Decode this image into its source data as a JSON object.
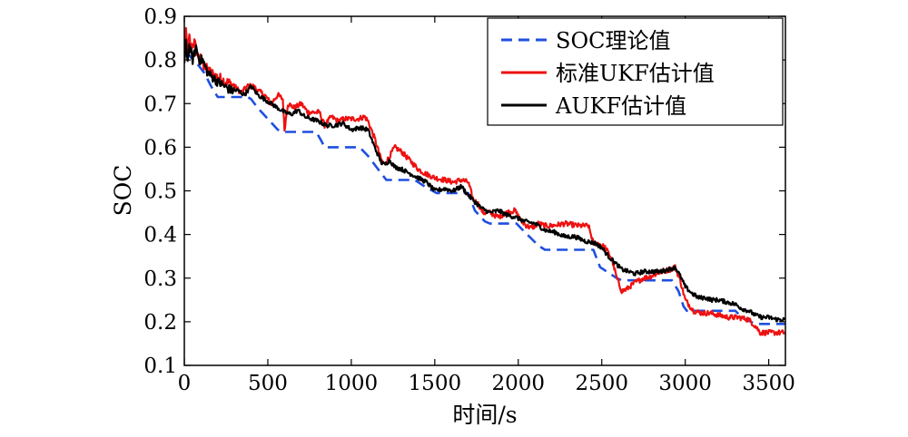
{
  "chart_data": {
    "type": "line",
    "title": "",
    "xlabel": "时间/s",
    "ylabel": "SOC",
    "xlim": [
      0,
      3600
    ],
    "ylim": [
      0.1,
      0.9
    ],
    "xticks": [
      0,
      500,
      1000,
      1500,
      2000,
      2500,
      3000,
      3500
    ],
    "xtick_labels": [
      "0",
      "500",
      "1000",
      "1500",
      "2000",
      "2500",
      "3000",
      "3500"
    ],
    "yticks": [
      0.1,
      0.2,
      0.3,
      0.4,
      0.5,
      0.6,
      0.7,
      0.8,
      0.9
    ],
    "ytick_labels": [
      "0.1",
      "0.2",
      "0.3",
      "0.4",
      "0.5",
      "0.6",
      "0.7",
      "0.8",
      "0.9"
    ],
    "grid": false,
    "legend_position": "top-right",
    "series": [
      {
        "name": "SOC理论值",
        "color": "#1f4fe0",
        "style": "dashed",
        "x": [
          0,
          30,
          80,
          120,
          160,
          200,
          380,
          400,
          440,
          560,
          590,
          790,
          820,
          840,
          1050,
          1100,
          1190,
          1210,
          1380,
          1440,
          1510,
          1700,
          1740,
          1800,
          1830,
          1990,
          2040,
          2120,
          2160,
          2450,
          2490,
          2590,
          2620,
          2920,
          2960,
          2990,
          3010,
          3300,
          3340,
          3420,
          3600
        ],
        "y": [
          0.81,
          0.81,
          0.79,
          0.77,
          0.74,
          0.715,
          0.715,
          0.71,
          0.69,
          0.64,
          0.635,
          0.635,
          0.615,
          0.6,
          0.6,
          0.58,
          0.535,
          0.525,
          0.525,
          0.51,
          0.495,
          0.495,
          0.455,
          0.43,
          0.425,
          0.425,
          0.405,
          0.375,
          0.365,
          0.365,
          0.325,
          0.3,
          0.295,
          0.295,
          0.27,
          0.235,
          0.225,
          0.225,
          0.21,
          0.195,
          0.195
        ]
      },
      {
        "name": "标准UKF估计值",
        "color": "#ee1111",
        "style": "solid",
        "x": [
          0,
          10,
          20,
          30,
          40,
          60,
          80,
          100,
          130,
          160,
          200,
          250,
          300,
          340,
          380,
          410,
          440,
          480,
          520,
          560,
          590,
          600,
          620,
          660,
          700,
          740,
          780,
          810,
          840,
          880,
          920,
          960,
          1000,
          1040,
          1080,
          1100,
          1140,
          1180,
          1200,
          1230,
          1260,
          1300,
          1350,
          1400,
          1440,
          1500,
          1560,
          1610,
          1660,
          1700,
          1730,
          1760,
          1790,
          1830,
          1880,
          1930,
          1980,
          2020,
          2050,
          2080,
          2120,
          2160,
          2200,
          2280,
          2360,
          2420,
          2450,
          2480,
          2520,
          2560,
          2590,
          2620,
          2650,
          2700,
          2750,
          2800,
          2860,
          2910,
          2940,
          2970,
          3000,
          3050,
          3100,
          3150,
          3200,
          3260,
          3320,
          3380,
          3420,
          3450,
          3500,
          3550,
          3600
        ],
        "y": [
          0.8,
          0.86,
          0.82,
          0.85,
          0.83,
          0.84,
          0.81,
          0.8,
          0.78,
          0.77,
          0.76,
          0.75,
          0.74,
          0.725,
          0.74,
          0.74,
          0.73,
          0.72,
          0.7,
          0.72,
          0.71,
          0.64,
          0.7,
          0.69,
          0.7,
          0.68,
          0.68,
          0.68,
          0.65,
          0.67,
          0.66,
          0.665,
          0.665,
          0.665,
          0.67,
          0.66,
          0.62,
          0.57,
          0.56,
          0.58,
          0.6,
          0.59,
          0.57,
          0.55,
          0.54,
          0.53,
          0.525,
          0.52,
          0.525,
          0.52,
          0.48,
          0.47,
          0.45,
          0.45,
          0.44,
          0.45,
          0.455,
          0.43,
          0.42,
          0.415,
          0.425,
          0.42,
          0.42,
          0.425,
          0.42,
          0.42,
          0.38,
          0.38,
          0.37,
          0.345,
          0.3,
          0.27,
          0.275,
          0.29,
          0.3,
          0.305,
          0.315,
          0.32,
          0.325,
          0.295,
          0.25,
          0.225,
          0.22,
          0.22,
          0.215,
          0.21,
          0.21,
          0.205,
          0.19,
          0.175,
          0.175,
          0.175,
          0.175
        ]
      },
      {
        "name": "AUKF估计值",
        "color": "#000000",
        "style": "solid",
        "x": [
          0,
          10,
          20,
          30,
          50,
          70,
          90,
          110,
          140,
          170,
          200,
          240,
          280,
          320,
          360,
          400,
          440,
          480,
          520,
          560,
          600,
          640,
          680,
          720,
          760,
          800,
          850,
          900,
          950,
          1000,
          1050,
          1100,
          1140,
          1180,
          1200,
          1230,
          1260,
          1300,
          1350,
          1400,
          1450,
          1500,
          1560,
          1610,
          1660,
          1700,
          1740,
          1780,
          1830,
          1880,
          1930,
          1980,
          2040,
          2100,
          2160,
          2220,
          2280,
          2340,
          2400,
          2460,
          2500,
          2540,
          2580,
          2620,
          2660,
          2700,
          2750,
          2800,
          2850,
          2900,
          2940,
          2970,
          3000,
          3040,
          3080,
          3120,
          3160,
          3200,
          3250,
          3300,
          3340,
          3380,
          3420,
          3460,
          3500,
          3550,
          3600
        ],
        "y": [
          0.79,
          0.84,
          0.8,
          0.83,
          0.8,
          0.83,
          0.8,
          0.8,
          0.77,
          0.76,
          0.75,
          0.74,
          0.73,
          0.73,
          0.72,
          0.74,
          0.72,
          0.71,
          0.7,
          0.69,
          0.68,
          0.675,
          0.685,
          0.67,
          0.665,
          0.66,
          0.65,
          0.65,
          0.655,
          0.64,
          0.645,
          0.64,
          0.6,
          0.565,
          0.56,
          0.57,
          0.555,
          0.55,
          0.54,
          0.53,
          0.52,
          0.5,
          0.505,
          0.5,
          0.51,
          0.49,
          0.475,
          0.46,
          0.45,
          0.455,
          0.445,
          0.44,
          0.43,
          0.425,
          0.41,
          0.405,
          0.395,
          0.395,
          0.385,
          0.38,
          0.37,
          0.35,
          0.335,
          0.32,
          0.315,
          0.31,
          0.315,
          0.315,
          0.315,
          0.32,
          0.325,
          0.305,
          0.28,
          0.265,
          0.255,
          0.255,
          0.25,
          0.25,
          0.245,
          0.24,
          0.23,
          0.225,
          0.215,
          0.21,
          0.21,
          0.205,
          0.205
        ]
      }
    ]
  }
}
